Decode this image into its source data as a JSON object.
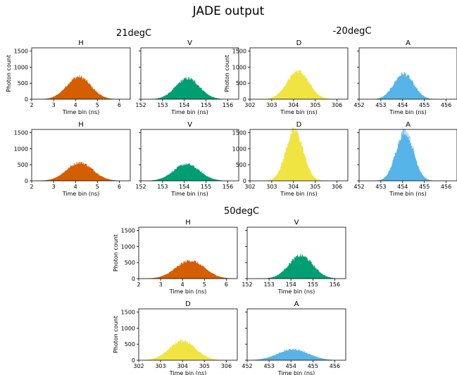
{
  "title": "JADE output",
  "colors": {
    "H": "#d55e00",
    "V": "#009e73",
    "D": "#f0e442",
    "A": "#56b4e9"
  },
  "chart_data": [
    {
      "group": "21degC",
      "panels": [
        {
          "type": "histogram",
          "title": "H",
          "xlabel": "Time bin (ns)",
          "ylabel": "Photon count",
          "xlim": [
            2,
            6.5
          ],
          "ylim": [
            0,
            1600
          ],
          "xticks": [
            2,
            3,
            4,
            5,
            6
          ],
          "yticks": [
            0,
            500,
            1000,
            1500
          ],
          "peak_x": 4.15,
          "peak_y": 700,
          "sigma": 0.55
        },
        {
          "type": "histogram",
          "title": "V",
          "xlabel": "Time bin (ns)",
          "ylabel": "",
          "xlim": [
            152,
            156.5
          ],
          "ylim": [
            0,
            1600
          ],
          "xticks": [
            152,
            153,
            154,
            155,
            156
          ],
          "yticks": [],
          "peak_x": 154.15,
          "peak_y": 650,
          "sigma": 0.55
        },
        {
          "type": "histogram",
          "title": "D",
          "xlabel": "Time bin (ns)",
          "ylabel": "Photon count",
          "xlim": [
            302,
            306.5
          ],
          "ylim": [
            0,
            1600
          ],
          "xticks": [
            302,
            303,
            304,
            305,
            306
          ],
          "yticks": [
            0,
            500,
            1000,
            1500
          ],
          "peak_x": 304.2,
          "peak_y": 880,
          "sigma": 0.5
        },
        {
          "type": "histogram",
          "title": "A",
          "xlabel": "Time bin (ns)",
          "ylabel": "",
          "xlim": [
            452,
            456.5
          ],
          "ylim": [
            0,
            1600
          ],
          "xticks": [
            452,
            453,
            454,
            455,
            456
          ],
          "yticks": [],
          "peak_x": 454.05,
          "peak_y": 800,
          "sigma": 0.45
        }
      ]
    },
    {
      "group": "-20degC",
      "panels": [
        {
          "type": "histogram",
          "title": "H",
          "xlabel": "Time bin (ns)",
          "ylabel": "",
          "xlim": [
            2,
            6.5
          ],
          "ylim": [
            0,
            1600
          ],
          "xticks": [
            2,
            3,
            4,
            5,
            6
          ],
          "yticks": [
            0,
            500,
            1000,
            1500
          ],
          "peak_x": 4.2,
          "peak_y": 570,
          "sigma": 0.6
        },
        {
          "type": "histogram",
          "title": "V",
          "xlabel": "Time bin (ns)",
          "ylabel": "",
          "xlim": [
            152,
            156.5
          ],
          "ylim": [
            0,
            1600
          ],
          "xticks": [
            152,
            153,
            154,
            155,
            156
          ],
          "yticks": [],
          "peak_x": 154.1,
          "peak_y": 520,
          "sigma": 0.6
        },
        {
          "type": "histogram",
          "title": "D",
          "xlabel": "Time bin (ns)",
          "ylabel": "",
          "xlim": [
            302,
            306.5
          ],
          "ylim": [
            0,
            1600
          ],
          "xticks": [
            302,
            303,
            304,
            305,
            306
          ],
          "yticks": [
            0,
            500,
            1000,
            1500
          ],
          "peak_x": 304.05,
          "peak_y": 1580,
          "sigma": 0.4
        },
        {
          "type": "histogram",
          "title": "A",
          "xlabel": "Time bin (ns)",
          "ylabel": "",
          "xlim": [
            452,
            456.5
          ],
          "ylim": [
            0,
            1600
          ],
          "xticks": [
            452,
            453,
            454,
            455,
            456
          ],
          "yticks": [],
          "peak_x": 454.1,
          "peak_y": 1550,
          "sigma": 0.4
        }
      ]
    },
    {
      "group": "50degC",
      "panels": [
        {
          "type": "histogram",
          "title": "H",
          "xlabel": "Time bin (ns)",
          "ylabel": "Photon count",
          "xlim": [
            2,
            6.5
          ],
          "ylim": [
            0,
            1600
          ],
          "xticks": [
            2,
            3,
            4,
            5,
            6
          ],
          "yticks": [
            0,
            500,
            1000,
            1500
          ],
          "peak_x": 4.35,
          "peak_y": 560,
          "sigma": 0.65
        },
        {
          "type": "histogram",
          "title": "V",
          "xlabel": "Time bin (ns)",
          "ylabel": "",
          "xlim": [
            152,
            156.5
          ],
          "ylim": [
            0,
            1600
          ],
          "xticks": [
            152,
            153,
            154,
            155,
            156
          ],
          "yticks": [],
          "peak_x": 154.45,
          "peak_y": 720,
          "sigma": 0.55
        },
        {
          "type": "histogram",
          "title": "D",
          "xlabel": "Time bin (ns)",
          "ylabel": "Photon count",
          "xlim": [
            302,
            306.5
          ],
          "ylim": [
            0,
            1600
          ],
          "xticks": [
            302,
            303,
            304,
            305,
            306
          ],
          "yticks": [
            0,
            500,
            1000,
            1500
          ],
          "peak_x": 304,
          "peak_y": 610,
          "sigma": 0.6
        },
        {
          "type": "histogram",
          "title": "A",
          "xlabel": "Time bin (ns)",
          "ylabel": "",
          "xlim": [
            452,
            456.5
          ],
          "ylim": [
            0,
            1600
          ],
          "xticks": [
            452,
            453,
            454,
            455,
            456
          ],
          "yticks": [],
          "peak_x": 454.1,
          "peak_y": 340,
          "sigma": 0.7
        }
      ]
    }
  ]
}
